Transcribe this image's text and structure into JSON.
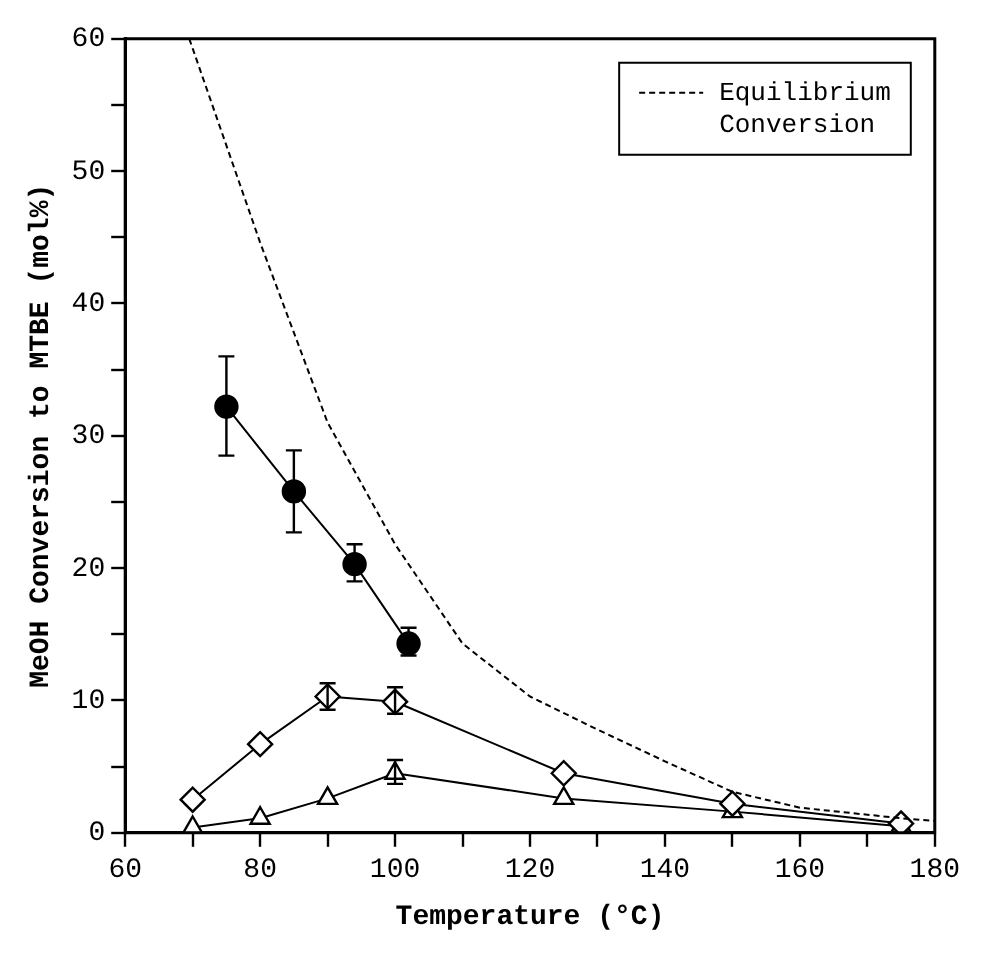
{
  "chart_data": {
    "type": "line",
    "xlabel": "Temperature (°C)",
    "ylabel": "MeOH Conversion to MTBE (mol%)",
    "xlim": [
      60,
      180
    ],
    "xticks": [
      60,
      {
        "value": 70,
        "label": null
      },
      80,
      {
        "value": 90,
        "label": null
      },
      100,
      {
        "value": 110,
        "label": null
      },
      120,
      {
        "value": 130,
        "label": null
      },
      140,
      {
        "value": 150,
        "label": null
      },
      160,
      {
        "value": 170,
        "label": null
      },
      180
    ],
    "ylim": [
      0,
      60
    ],
    "yticks": [
      0,
      {
        "value": 5,
        "label": null
      },
      10,
      {
        "value": 15,
        "label": null
      },
      20,
      {
        "value": 25,
        "label": null
      },
      30,
      {
        "value": 35,
        "label": null
      },
      40,
      {
        "value": 45,
        "label": null
      },
      50,
      {
        "value": 55,
        "label": null
      },
      60
    ],
    "legend": "top right",
    "series": [
      {
        "name": "Equilibrium Conversion",
        "color": "#000000",
        "line_style": "dashed",
        "marker": "none",
        "x": [
          69.5,
          80,
          90,
          100,
          110,
          120,
          130,
          140,
          150,
          160,
          175,
          180
        ],
        "values": [
          60,
          44.6,
          31,
          21.8,
          14.3,
          10.3,
          7.8,
          5.4,
          3.1,
          1.9,
          1.1,
          0.9
        ]
      },
      {
        "color": "#000000",
        "line_style": "solid",
        "marker": "circle",
        "x": [
          75,
          85,
          94,
          102
        ],
        "values": [
          32.2,
          25.8,
          20.3,
          14.3
        ],
        "errors": [
          [
            28.5,
            36
          ],
          [
            22.7,
            28.9
          ],
          [
            19,
            21.8
          ],
          [
            13.4,
            15.5
          ]
        ]
      },
      {
        "color": "#000000",
        "line_style": "solid",
        "marker": "diamond",
        "x": [
          70,
          80,
          90,
          100,
          125,
          150,
          175
        ],
        "values": [
          2.5,
          6.7,
          10.3,
          9.9,
          4.5,
          2.2,
          0.7
        ],
        "errors": [
          null,
          null,
          [
            9.3,
            11.3
          ],
          [
            9,
            11
          ],
          null,
          null,
          null
        ]
      },
      {
        "color": "#000000",
        "line_style": "solid",
        "marker": "triangle",
        "x": [
          70,
          80,
          90,
          100,
          125,
          150,
          175
        ],
        "values": [
          0.4,
          1.1,
          2.6,
          4.5,
          2.6,
          1.6,
          0.5
        ],
        "errors": [
          null,
          null,
          null,
          [
            3.7,
            5.5
          ],
          null,
          null,
          null
        ]
      }
    ]
  }
}
